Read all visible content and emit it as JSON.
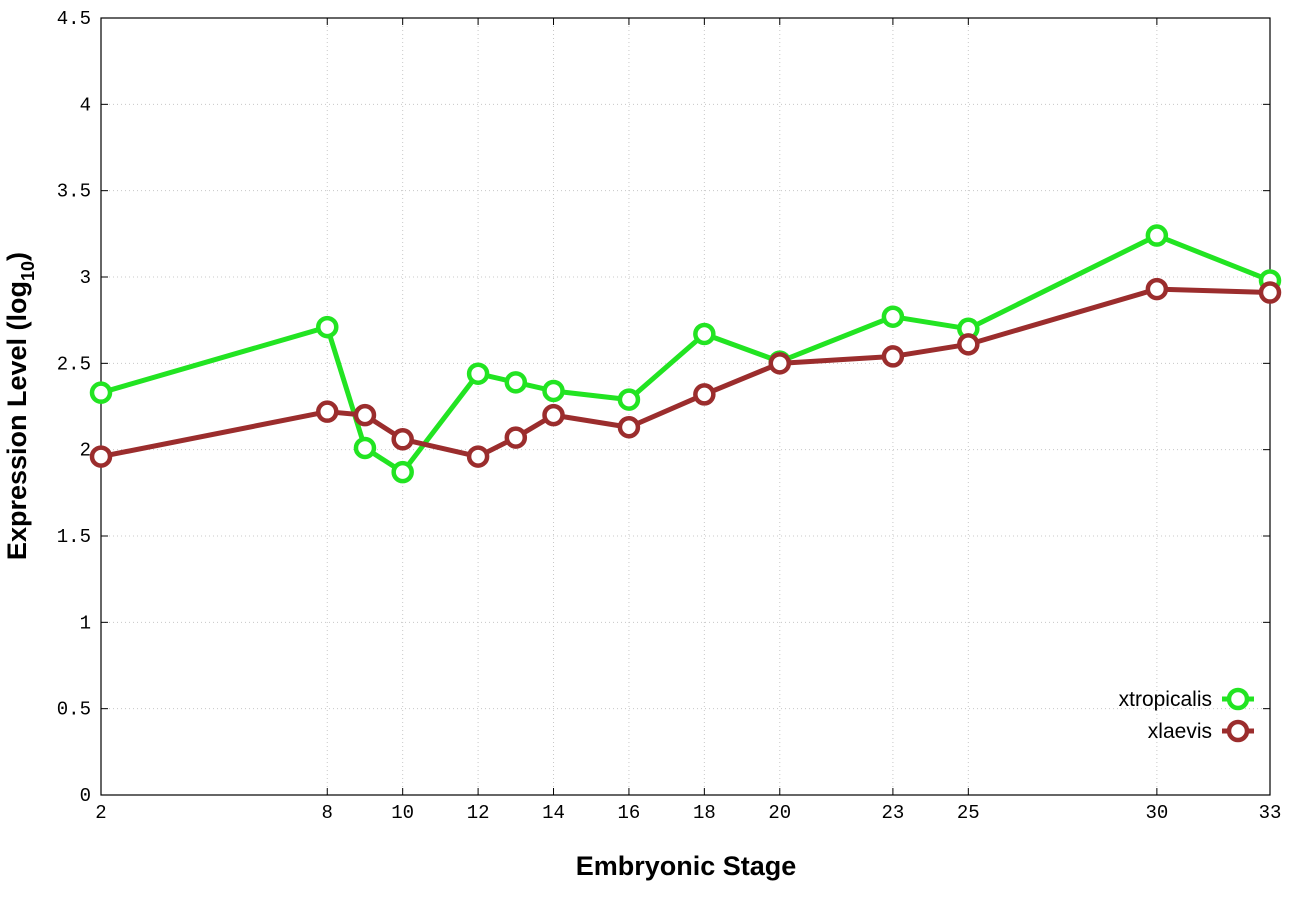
{
  "chart_data": {
    "type": "line",
    "title": "",
    "xlabel": "Embryonic Stage",
    "ylabel_main": "Expression Level (log",
    "ylabel_sub": "10",
    "ylabel_close": ")",
    "x": [
      2,
      8,
      9,
      10,
      12,
      13,
      14,
      16,
      18,
      20,
      23,
      25,
      30,
      33
    ],
    "x_tick_labels": [
      "2",
      "8",
      "10",
      "12",
      "14",
      "16",
      "18",
      "20",
      "23",
      "25",
      "30",
      "33"
    ],
    "x_tick_values": [
      2,
      8,
      10,
      12,
      14,
      16,
      18,
      20,
      23,
      25,
      30,
      33
    ],
    "xlim": [
      2,
      33
    ],
    "ylim": [
      0,
      4.5
    ],
    "y_tick_labels": [
      "0",
      "0.5",
      "1",
      "1.5",
      "2",
      "2.5",
      "3",
      "3.5",
      "4",
      "4.5"
    ],
    "y_tick_values": [
      0,
      0.5,
      1,
      1.5,
      2,
      2.5,
      3,
      3.5,
      4,
      4.5
    ],
    "grid": true,
    "legend_position": "bottom-right",
    "series": [
      {
        "name": "xtropicalis",
        "color": "#22e422",
        "values": [
          2.33,
          2.71,
          2.01,
          1.87,
          2.44,
          2.39,
          2.34,
          2.29,
          2.67,
          2.51,
          2.77,
          2.7,
          3.24,
          2.98
        ]
      },
      {
        "name": "xlaevis",
        "color": "#9b2d2d",
        "values": [
          1.96,
          2.22,
          2.2,
          2.06,
          1.96,
          2.07,
          2.2,
          2.13,
          2.32,
          2.5,
          2.54,
          2.61,
          2.93,
          2.91
        ]
      }
    ]
  }
}
